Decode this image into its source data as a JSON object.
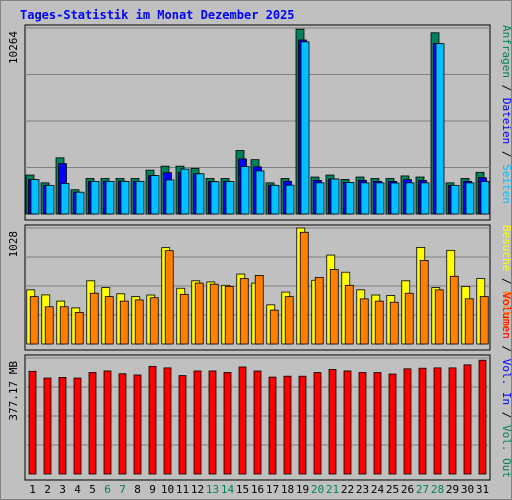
{
  "chart_data": {
    "type": "bar",
    "title": "Tages-Statistik im Monat Dezember 2025",
    "categories": [
      "1",
      "2",
      "3",
      "4",
      "5",
      "6",
      "7",
      "8",
      "9",
      "10",
      "11",
      "12",
      "13",
      "14",
      "15",
      "16",
      "17",
      "18",
      "19",
      "20",
      "21",
      "22",
      "23",
      "24",
      "25",
      "26",
      "27",
      "28",
      "29",
      "30",
      "31"
    ],
    "weekend_days": [
      "6",
      "7",
      "13",
      "14",
      "20",
      "21",
      "27",
      "28"
    ],
    "grid": true,
    "panels": [
      {
        "name": "requests",
        "max_label": "10264",
        "ylim": [
          0,
          10264
        ],
        "legend_right": [
          {
            "text": "Anfragen",
            "color": "#00805c"
          },
          {
            "text": "Dateien",
            "color": "#0000ff"
          },
          {
            "text": "Seiten",
            "color": "#00c0ff"
          }
        ],
        "series": [
          {
            "name": "Anfragen",
            "color": "#00805c",
            "values": [
              2150,
              1720,
              3100,
              1340,
              1960,
              1960,
              1960,
              1960,
              2420,
              2640,
              2640,
              2520,
              1960,
              1960,
              3500,
              3000,
              1720,
              1960,
              10200,
              2040,
              2150,
              1910,
              2040,
              1960,
              1960,
              2100,
              2040,
              10000,
              1720,
              1960,
              2300
            ]
          },
          {
            "name": "Dateien",
            "color": "#0000ff",
            "values": [
              1900,
              1580,
              2780,
              1200,
              1800,
              1800,
              1810,
              1800,
              2120,
              2280,
              2300,
              2220,
              1790,
              1790,
              3040,
              2600,
              1590,
              1800,
              9600,
              1850,
              1930,
              1740,
              1860,
              1800,
              1800,
              1900,
              1850,
              9400,
              1580,
              1800,
              2000
            ]
          },
          {
            "name": "Seiten",
            "color": "#00c0ff",
            "values": [
              1900,
              1580,
              1680,
              1200,
              1800,
              1800,
              1800,
              1800,
              2120,
              1880,
              2480,
              2220,
              1780,
              1790,
              2620,
              2380,
              1580,
              1590,
              9500,
              1720,
              1930,
              1740,
              1720,
              1720,
              1710,
              1720,
              1720,
              9400,
              1580,
              1720,
              1790
            ]
          }
        ]
      },
      {
        "name": "visits",
        "max_label": "1028",
        "ylim": [
          0,
          1028
        ],
        "legend_right": [
          {
            "text": "Besuche",
            "color": "#ffff00"
          },
          {
            "text": "Rechner",
            "color": "#ff8000"
          }
        ],
        "series": [
          {
            "name": "Besuche",
            "color": "#ffff00",
            "values": [
              480,
              435,
              380,
              320,
              560,
              500,
              445,
              420,
              434,
              854,
              494,
              560,
              550,
              520,
              620,
              540,
              347,
              460,
              1028,
              565,
              788,
              636,
              480,
              434,
              430,
              560,
              856,
              500,
              830,
              510,
              580
            ]
          },
          {
            "name": "Rechner",
            "color": "#ff8000",
            "values": [
              420,
              330,
              330,
              280,
              450,
              420,
              380,
              390,
              410,
              827,
              440,
              540,
              530,
              510,
              580,
              608,
              300,
              420,
              990,
              590,
              660,
              520,
              400,
              380,
              370,
              450,
              740,
              480,
              600,
              400,
              420
            ]
          }
        ]
      },
      {
        "name": "volume",
        "max_label": "377.17 MB",
        "ylim": [
          0,
          377.17
        ],
        "legend_right": [
          {
            "text": "Volumen",
            "color": "#ff0000"
          },
          {
            "text": "Vol. In",
            "color": "#0000ff"
          },
          {
            "text": "Vol. Out",
            "color": "#00805c"
          }
        ],
        "series": [
          {
            "name": "Volumen",
            "color": "#ff0000",
            "values": [
              334,
              312,
              314,
              312,
              330,
              335,
              326,
              322,
              350,
              345,
              320,
              335,
              335,
              330,
              348,
              335,
              315,
              318,
              318,
              330,
              340,
              335,
              330,
              330,
              325,
              342,
              344,
              345,
              345,
              355,
              370
            ]
          }
        ]
      }
    ]
  }
}
